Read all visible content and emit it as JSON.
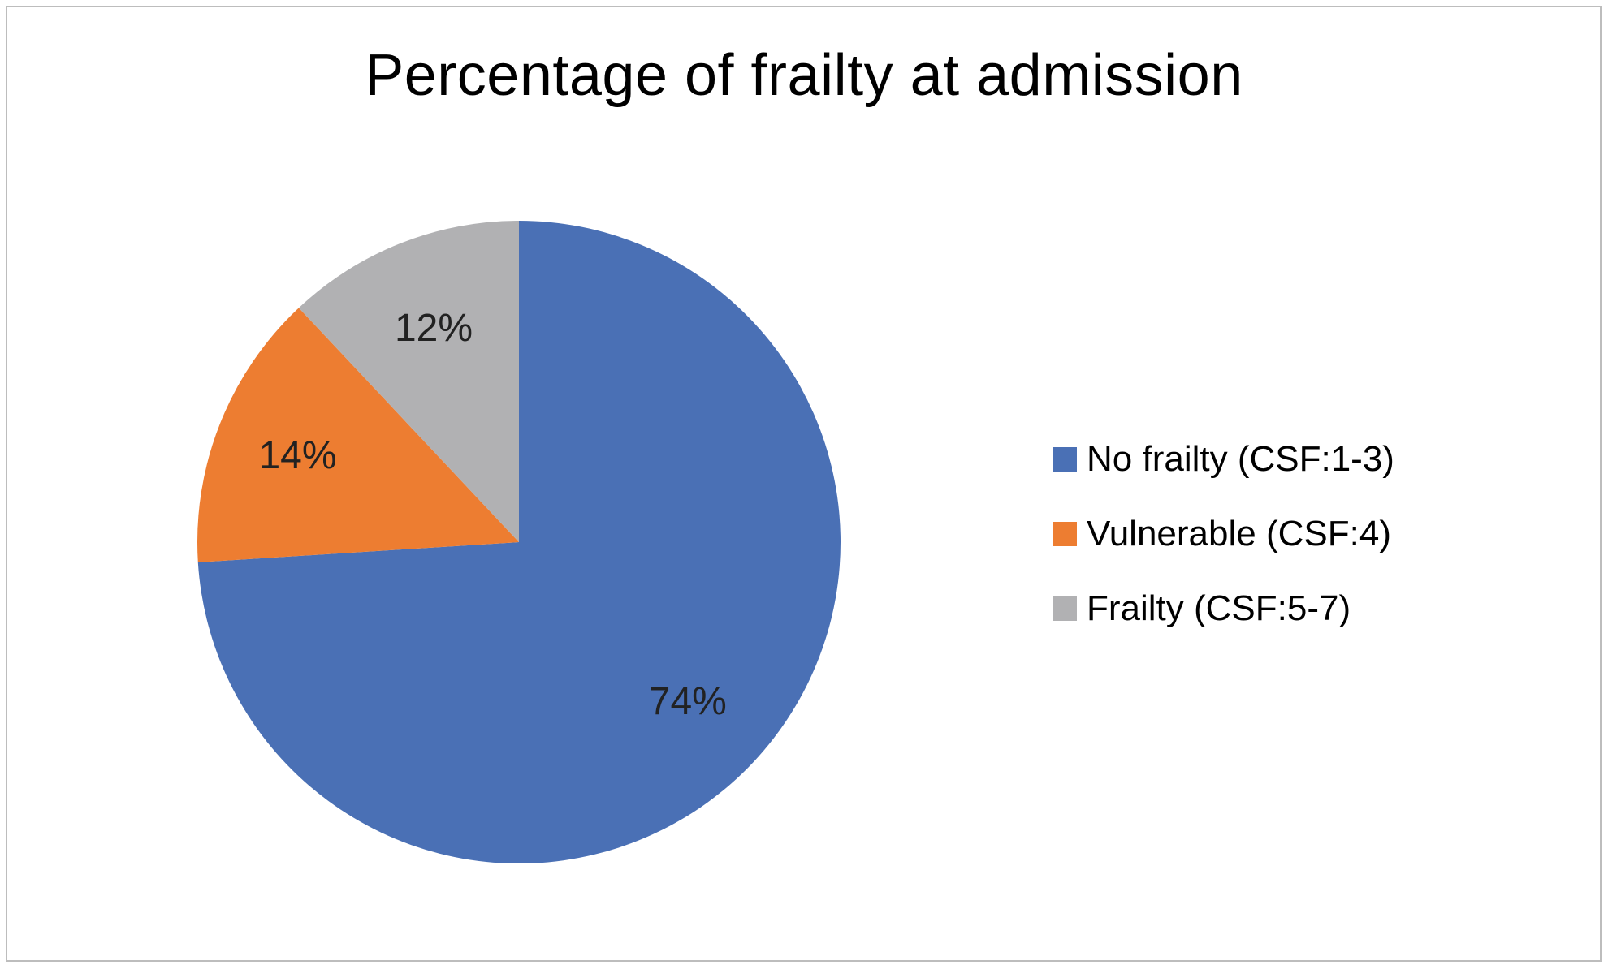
{
  "chart_data": {
    "type": "pie",
    "title": "Percentage of frailty at admission",
    "categories": [
      "No frailty (CSF:1-3)",
      "Vulnerable (CSF:4)",
      "Frailty (CSF:5-7)"
    ],
    "values": [
      74,
      14,
      12
    ],
    "value_labels": [
      "74%",
      "14%",
      "12%"
    ],
    "colors": [
      "#4A70B5",
      "#ED7D31",
      "#B1B1B3"
    ],
    "legend_position": "right",
    "start_angle": "12 o'clock",
    "direction": "clockwise"
  }
}
